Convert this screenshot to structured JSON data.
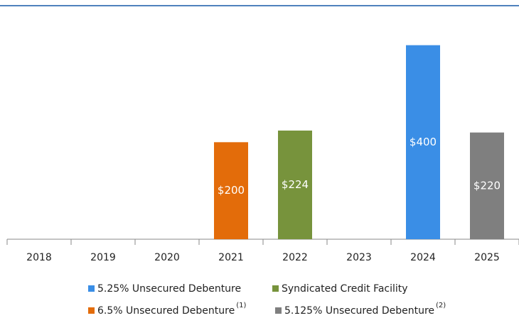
{
  "chart_data": {
    "type": "bar",
    "categories": [
      "2018",
      "2019",
      "2020",
      "2021",
      "2022",
      "2023",
      "2024",
      "2025"
    ],
    "series": [
      {
        "name": "5.25% Unsecured Debenture",
        "color": "#3a8ee6",
        "values": [
          null,
          null,
          null,
          null,
          null,
          null,
          400,
          null
        ],
        "value_labels": [
          null,
          null,
          null,
          null,
          null,
          null,
          "$400",
          null
        ]
      },
      {
        "name": "Syndicated Credit Facility",
        "color": "#77933c",
        "values": [
          null,
          null,
          null,
          null,
          224,
          null,
          null,
          null
        ],
        "value_labels": [
          null,
          null,
          null,
          null,
          "$224",
          null,
          null,
          null
        ]
      },
      {
        "name": "6.5% Unsecured Debenture",
        "note": "(1)",
        "color": "#e36c0a",
        "values": [
          null,
          null,
          null,
          200,
          null,
          null,
          null,
          null
        ],
        "value_labels": [
          null,
          null,
          null,
          "$200",
          null,
          null,
          null,
          null
        ]
      },
      {
        "name": "5.125% Unsecured Debenture",
        "note": "(2)",
        "color": "#7f7f7f",
        "values": [
          null,
          null,
          null,
          null,
          null,
          null,
          null,
          220
        ],
        "value_labels": [
          null,
          null,
          null,
          null,
          null,
          null,
          null,
          "$220"
        ]
      }
    ],
    "ylim": [
      0,
      480
    ]
  }
}
